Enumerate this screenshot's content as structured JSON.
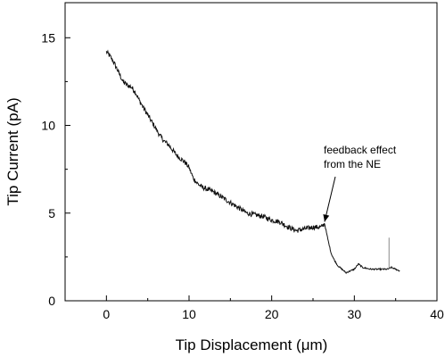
{
  "chart_data": {
    "type": "line",
    "xlabel": "Tip Displacement (μm)",
    "ylabel": "Tip Current (pA)",
    "xlim": [
      -5,
      40
    ],
    "ylim": [
      0,
      17
    ],
    "xticks": [
      0,
      10,
      20,
      30,
      40
    ],
    "yticks": [
      0,
      5,
      10,
      15
    ],
    "grid": false,
    "annotation": {
      "lines": [
        "feedback effect",
        "from the NE"
      ],
      "points_to": [
        26.4,
        4.4
      ]
    },
    "series": [
      {
        "x": [
          0,
          0.5,
          1,
          1.5,
          2,
          2.5,
          3,
          3.5,
          4,
          4.5,
          5,
          5.5,
          6,
          6.5,
          7,
          7.5,
          8,
          8.5,
          9,
          9.5,
          10,
          10.5,
          11,
          11.5,
          12,
          13,
          14,
          15,
          16,
          17,
          18,
          19,
          20,
          21,
          22,
          23,
          24,
          25,
          26,
          26.4,
          26.8,
          27.2,
          27.6,
          28,
          28.5,
          29,
          29.5,
          30,
          30.5,
          31,
          32,
          33,
          34,
          34.5,
          35,
          35.5
        ],
        "y": [
          14.2,
          13.9,
          13.5,
          13.0,
          12.5,
          12.3,
          12.2,
          11.9,
          11.4,
          11.0,
          10.6,
          10.2,
          9.8,
          9.4,
          9.1,
          8.9,
          8.6,
          8.3,
          8.1,
          7.9,
          7.6,
          7.0,
          6.7,
          6.5,
          6.4,
          6.2,
          5.9,
          5.6,
          5.3,
          5.0,
          4.9,
          4.8,
          4.6,
          4.5,
          4.2,
          4.0,
          4.1,
          4.2,
          4.2,
          4.4,
          3.5,
          2.7,
          2.3,
          2.0,
          1.8,
          1.6,
          1.7,
          1.8,
          2.1,
          1.9,
          1.8,
          1.8,
          1.8,
          1.9,
          1.8,
          1.7
        ]
      }
    ]
  }
}
